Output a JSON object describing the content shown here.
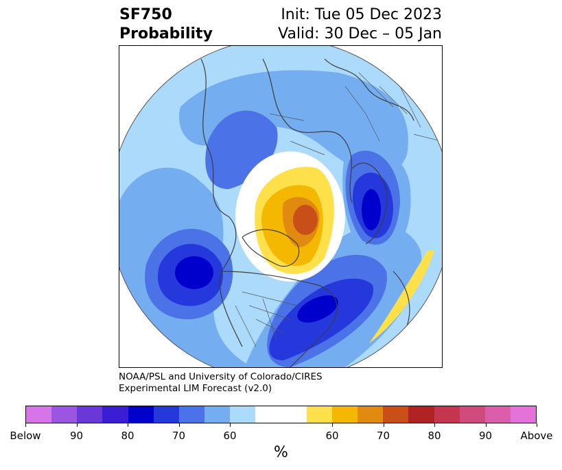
{
  "title": {
    "line1_left": "SF750",
    "line2_left": "Probability",
    "line1_right": "Init: Tue 05 Dec 2023",
    "line2_right": "Valid: 30 Dec – 05 Jan"
  },
  "credit": {
    "line1": "NOAA/PSL and University of Colorado/CIRES",
    "line2": "Experimental LIM Forecast (v2.0)"
  },
  "colorbar": {
    "colors": [
      "#d675e8",
      "#9b55e0",
      "#6a38d6",
      "#3a1dd4",
      "#0000cd",
      "#2438dc",
      "#4b72e6",
      "#74aef0",
      "#acdafa",
      "#ffffff",
      "#ffffff",
      "#fde04a",
      "#f4b800",
      "#e08a0f",
      "#c85018",
      "#b02324",
      "#c2364e",
      "#cf4b7d",
      "#da5ea9",
      "#e373d9"
    ],
    "tick_labels": [
      "Below",
      "90",
      "80",
      "70",
      "60",
      "60",
      "70",
      "80",
      "90",
      "Above"
    ],
    "unit": "%"
  }
}
